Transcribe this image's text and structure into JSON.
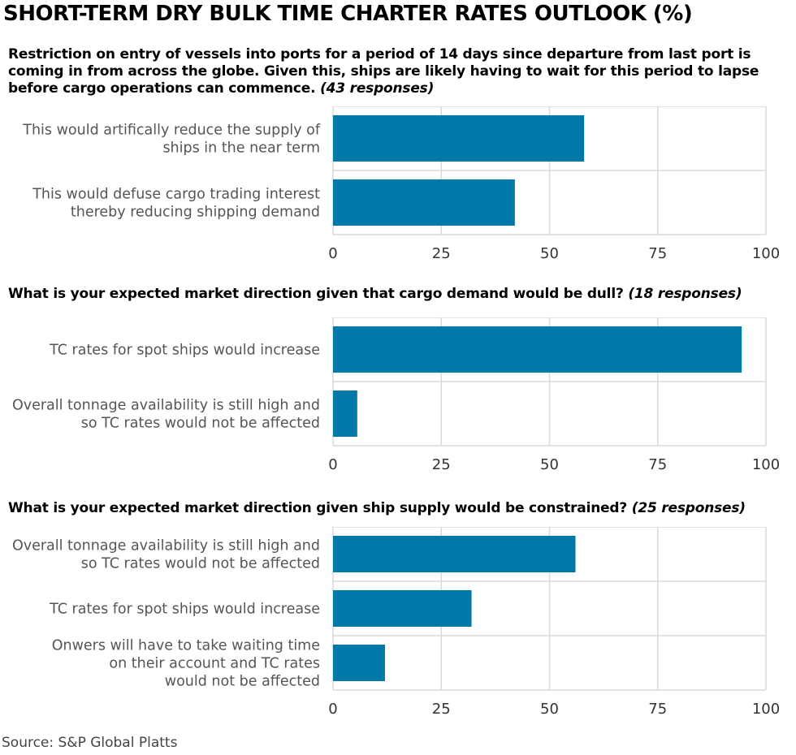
{
  "title": "SHORT-TERM DRY BULK TIME CHARTER RATES OUTLOOK (%)",
  "source": "Source: S&P Global Platts",
  "colors": {
    "bar": "#0079A8",
    "grid": "#DADADA",
    "label": "#555555",
    "tick": "#333333"
  },
  "chart_data": [
    {
      "type": "bar",
      "orientation": "horizontal",
      "question": "Restriction on entry of vessels into ports for a period of 14 days since departure from last port is coming in from across the globe. Given this, ships are likely having to wait for this period to lapse before cargo operations can commence.",
      "responses": "(43 responses)",
      "categories": [
        [
          "This would artifically reduce the supply of",
          "ships in the near term"
        ],
        [
          "This would defuse cargo trading interest",
          "thereby reducing shipping demand"
        ]
      ],
      "values": [
        58,
        42
      ],
      "xlim": [
        0,
        100
      ],
      "ticks": [
        "0",
        "25",
        "50",
        "75",
        "100"
      ]
    },
    {
      "type": "bar",
      "orientation": "horizontal",
      "question": "What is your expected market direction given that cargo demand would be dull?",
      "responses": "(18 responses)",
      "categories": [
        [
          "TC rates for spot ships would increase"
        ],
        [
          "Overall tonnage availability is still high and",
          "so TC rates would not be affected"
        ]
      ],
      "values": [
        94.4,
        5.6
      ],
      "xlim": [
        0,
        100
      ],
      "ticks": [
        "0",
        "25",
        "50",
        "75",
        "100"
      ]
    },
    {
      "type": "bar",
      "orientation": "horizontal",
      "question": "What is your expected market direction given ship supply would be constrained?",
      "responses": "(25 responses)",
      "categories": [
        [
          "Overall tonnage availability is still high and",
          "so TC rates would not be affected"
        ],
        [
          "TC rates for spot ships would increase"
        ],
        [
          "Onwers will have to take waiting time",
          "on their account and TC rates",
          "would not be affected"
        ]
      ],
      "values": [
        56,
        32,
        12
      ],
      "xlim": [
        0,
        100
      ],
      "ticks": [
        "0",
        "25",
        "50",
        "75",
        "100"
      ]
    }
  ]
}
